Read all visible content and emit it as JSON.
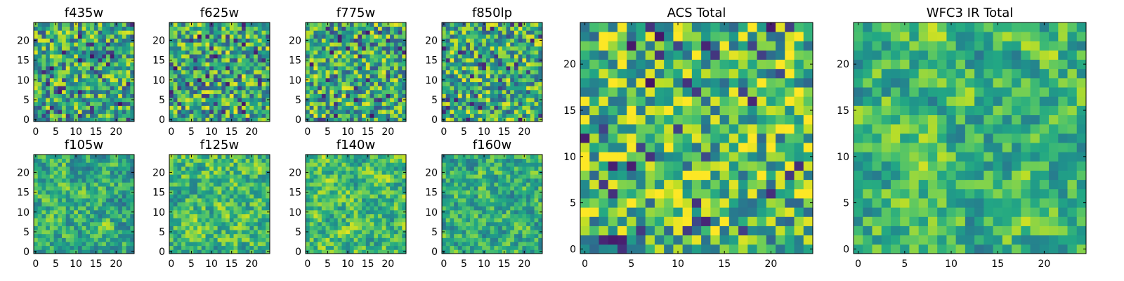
{
  "figure": {
    "colormap": "viridis",
    "axis_color": "#000000",
    "background": "#ffffff"
  },
  "chart_data": [
    {
      "type": "heatmap",
      "title": "f435w",
      "xlim": [
        0,
        24
      ],
      "ylim": [
        0,
        24
      ],
      "xticks": [
        "0",
        "5",
        "10",
        "15",
        "20"
      ],
      "yticks": [
        "0",
        "5",
        "10",
        "15",
        "20"
      ],
      "grid": false,
      "smoothness": 0,
      "mean": 0.58,
      "seed": 11
    },
    {
      "type": "heatmap",
      "title": "f625w",
      "xlim": [
        0,
        24
      ],
      "ylim": [
        0,
        24
      ],
      "xticks": [
        "0",
        "5",
        "10",
        "15",
        "20"
      ],
      "yticks": [
        "0",
        "5",
        "10",
        "15",
        "20"
      ],
      "grid": false,
      "smoothness": 0,
      "mean": 0.6,
      "seed": 23
    },
    {
      "type": "heatmap",
      "title": "f775w",
      "xlim": [
        0,
        24
      ],
      "ylim": [
        0,
        24
      ],
      "xticks": [
        "0",
        "5",
        "10",
        "15",
        "20"
      ],
      "yticks": [
        "0",
        "5",
        "10",
        "15",
        "20"
      ],
      "grid": false,
      "smoothness": 0,
      "mean": 0.6,
      "seed": 37
    },
    {
      "type": "heatmap",
      "title": "f850lp",
      "xlim": [
        0,
        24
      ],
      "ylim": [
        0,
        24
      ],
      "xticks": [
        "0",
        "5",
        "10",
        "15",
        "20"
      ],
      "yticks": [
        "0",
        "5",
        "10",
        "15",
        "20"
      ],
      "grid": false,
      "smoothness": 0,
      "mean": 0.6,
      "seed": 41
    },
    {
      "type": "heatmap",
      "title": "f105w",
      "xlim": [
        0,
        24
      ],
      "ylim": [
        0,
        24
      ],
      "xticks": [
        "0",
        "5",
        "10",
        "15",
        "20"
      ],
      "yticks": [
        "0",
        "5",
        "10",
        "15",
        "20"
      ],
      "grid": false,
      "smoothness": 1,
      "mean": 0.62,
      "seed": 53
    },
    {
      "type": "heatmap",
      "title": "f125w",
      "xlim": [
        0,
        24
      ],
      "ylim": [
        0,
        24
      ],
      "xticks": [
        "0",
        "5",
        "10",
        "15",
        "20"
      ],
      "yticks": [
        "0",
        "5",
        "10",
        "15",
        "20"
      ],
      "grid": false,
      "smoothness": 1,
      "mean": 0.68,
      "seed": 67
    },
    {
      "type": "heatmap",
      "title": "f140w",
      "xlim": [
        0,
        24
      ],
      "ylim": [
        0,
        24
      ],
      "xticks": [
        "0",
        "5",
        "10",
        "15",
        "20"
      ],
      "yticks": [
        "0",
        "5",
        "10",
        "15",
        "20"
      ],
      "grid": false,
      "smoothness": 1,
      "mean": 0.68,
      "seed": 71
    },
    {
      "type": "heatmap",
      "title": "f160w",
      "xlim": [
        0,
        24
      ],
      "ylim": [
        0,
        24
      ],
      "xticks": [
        "0",
        "5",
        "10",
        "15",
        "20"
      ],
      "yticks": [
        "0",
        "5",
        "10",
        "15",
        "20"
      ],
      "grid": false,
      "smoothness": 1,
      "mean": 0.62,
      "seed": 89
    },
    {
      "type": "heatmap",
      "title": "ACS Total",
      "xlim": [
        0,
        24
      ],
      "ylim": [
        0,
        24
      ],
      "xticks": [
        "0",
        "5",
        "10",
        "15",
        "20"
      ],
      "yticks": [
        "0",
        "5",
        "10",
        "15",
        "20"
      ],
      "grid": false,
      "smoothness": 0,
      "mean": 0.66,
      "seed": 97
    },
    {
      "type": "heatmap",
      "title": "WFC3 IR Total",
      "xlim": [
        0,
        24
      ],
      "ylim": [
        0,
        24
      ],
      "xticks": [
        "0",
        "5",
        "10",
        "15",
        "20"
      ],
      "yticks": [
        "0",
        "5",
        "10",
        "15",
        "20"
      ],
      "grid": false,
      "smoothness": 1,
      "mean": 0.66,
      "seed": 101
    }
  ]
}
